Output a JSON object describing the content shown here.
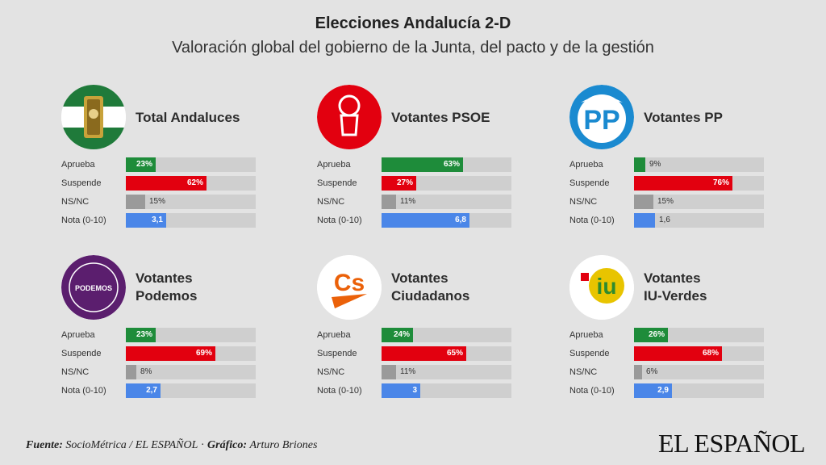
{
  "header": {
    "title": "Elecciones Andalucía 2-D",
    "subtitle": "Valoración global del gobierno de la Junta, del pacto y de la gestión"
  },
  "footer": {
    "source_label": "Fuente:",
    "source_text": "SocioMétrica / EL ESPAÑOL",
    "separator": "·",
    "graphic_label": "Gráfico:",
    "graphic_text": "Arturo Briones",
    "brand": "EL ESPAÑOL"
  },
  "colors": {
    "background": "#e3e3e3",
    "track": "#cfcfcf",
    "aprueba": "#1e8c3a",
    "suspende": "#e2000f",
    "nsnc": "#9a9a9a",
    "nota": "#4a86e8"
  },
  "logos": [
    {
      "name": "andalucia-flag-icon"
    },
    {
      "name": "psoe-rose-icon",
      "text": ""
    },
    {
      "name": "pp-logo-icon",
      "text": "PP"
    },
    {
      "name": "podemos-logo-icon",
      "text": "PODEMOS"
    },
    {
      "name": "ciudadanos-logo-icon",
      "text": "Cs"
    },
    {
      "name": "iu-verdes-logo-icon",
      "text": "iu"
    }
  ],
  "chart_data": [
    {
      "type": "bar",
      "title": "Total Andaluces",
      "categories": [
        "Aprueba",
        "Suspende",
        "NS/NC",
        "Nota (0-10)"
      ],
      "values": [
        23,
        62,
        15,
        3.1
      ],
      "labels": [
        "23%",
        "62%",
        "15%",
        "3,1"
      ],
      "units": [
        "%",
        "%",
        "%",
        "points (0-10)"
      ]
    },
    {
      "type": "bar",
      "title": "Votantes PSOE",
      "categories": [
        "Aprueba",
        "Suspende",
        "NS/NC",
        "Nota (0-10)"
      ],
      "values": [
        63,
        27,
        11,
        6.8
      ],
      "labels": [
        "63%",
        "27%",
        "11%",
        "6,8"
      ],
      "units": [
        "%",
        "%",
        "%",
        "points (0-10)"
      ]
    },
    {
      "type": "bar",
      "title": "Votantes PP",
      "categories": [
        "Aprueba",
        "Suspende",
        "NS/NC",
        "Nota (0-10)"
      ],
      "values": [
        9,
        76,
        15,
        1.6
      ],
      "labels": [
        "9%",
        "76%",
        "15%",
        "1,6"
      ],
      "units": [
        "%",
        "%",
        "%",
        "points (0-10)"
      ]
    },
    {
      "type": "bar",
      "title": "Votantes Podemos",
      "title_lines": [
        "Votantes",
        "Podemos"
      ],
      "categories": [
        "Aprueba",
        "Suspende",
        "NS/NC",
        "Nota (0-10)"
      ],
      "values": [
        23,
        69,
        8,
        2.7
      ],
      "labels": [
        "23%",
        "69%",
        "8%",
        "2,7"
      ],
      "units": [
        "%",
        "%",
        "%",
        "points (0-10)"
      ]
    },
    {
      "type": "bar",
      "title": "Votantes Ciudadanos",
      "title_lines": [
        "Votantes",
        "Ciudadanos"
      ],
      "categories": [
        "Aprueba",
        "Suspende",
        "NS/NC",
        "Nota (0-10)"
      ],
      "values": [
        24,
        65,
        11,
        3
      ],
      "labels": [
        "24%",
        "65%",
        "11%",
        "3"
      ],
      "units": [
        "%",
        "%",
        "%",
        "points (0-10)"
      ]
    },
    {
      "type": "bar",
      "title": "Votantes IU-Verdes",
      "title_lines": [
        "Votantes",
        "IU-Verdes"
      ],
      "categories": [
        "Aprueba",
        "Suspende",
        "NS/NC",
        "Nota (0-10)"
      ],
      "values": [
        26,
        68,
        6,
        2.9
      ],
      "labels": [
        "26%",
        "68%",
        "6%",
        "2,9"
      ],
      "units": [
        "%",
        "%",
        "%",
        "points (0-10)"
      ]
    }
  ]
}
